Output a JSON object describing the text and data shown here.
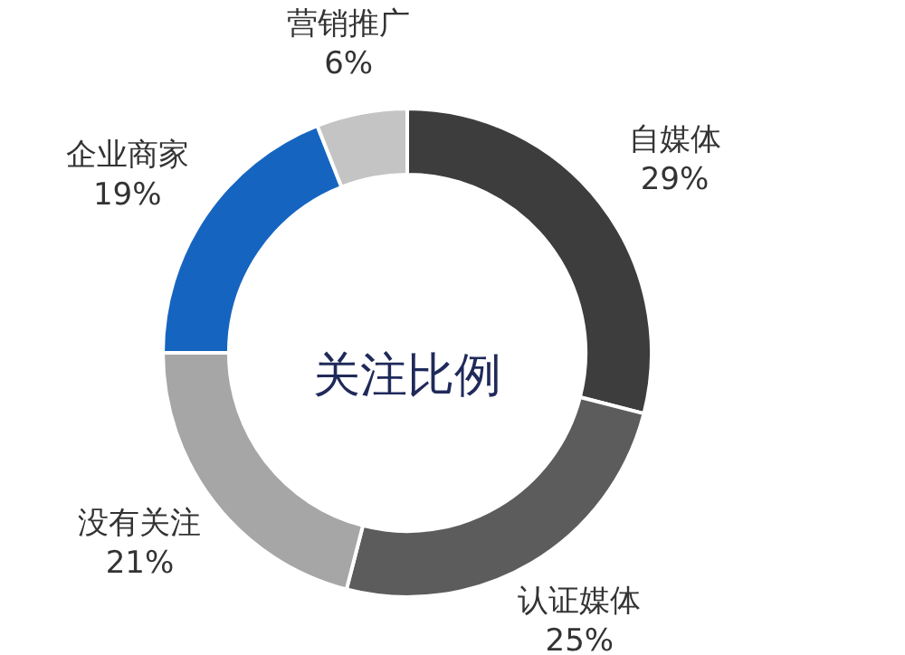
{
  "chart_data": {
    "type": "donut",
    "title": "关注比例",
    "categories": [
      "自媒体",
      "认证媒体",
      "没有关注",
      "企业商家",
      "营销推广"
    ],
    "values": [
      29,
      25,
      21,
      19,
      6
    ],
    "value_labels": [
      "29%",
      "25%",
      "21%",
      "19%",
      "6%"
    ],
    "colors": [
      "#3d3d3d",
      "#5c5c5c",
      "#a6a6a6",
      "#1565c0",
      "#c4c4c4"
    ],
    "legend": false
  }
}
